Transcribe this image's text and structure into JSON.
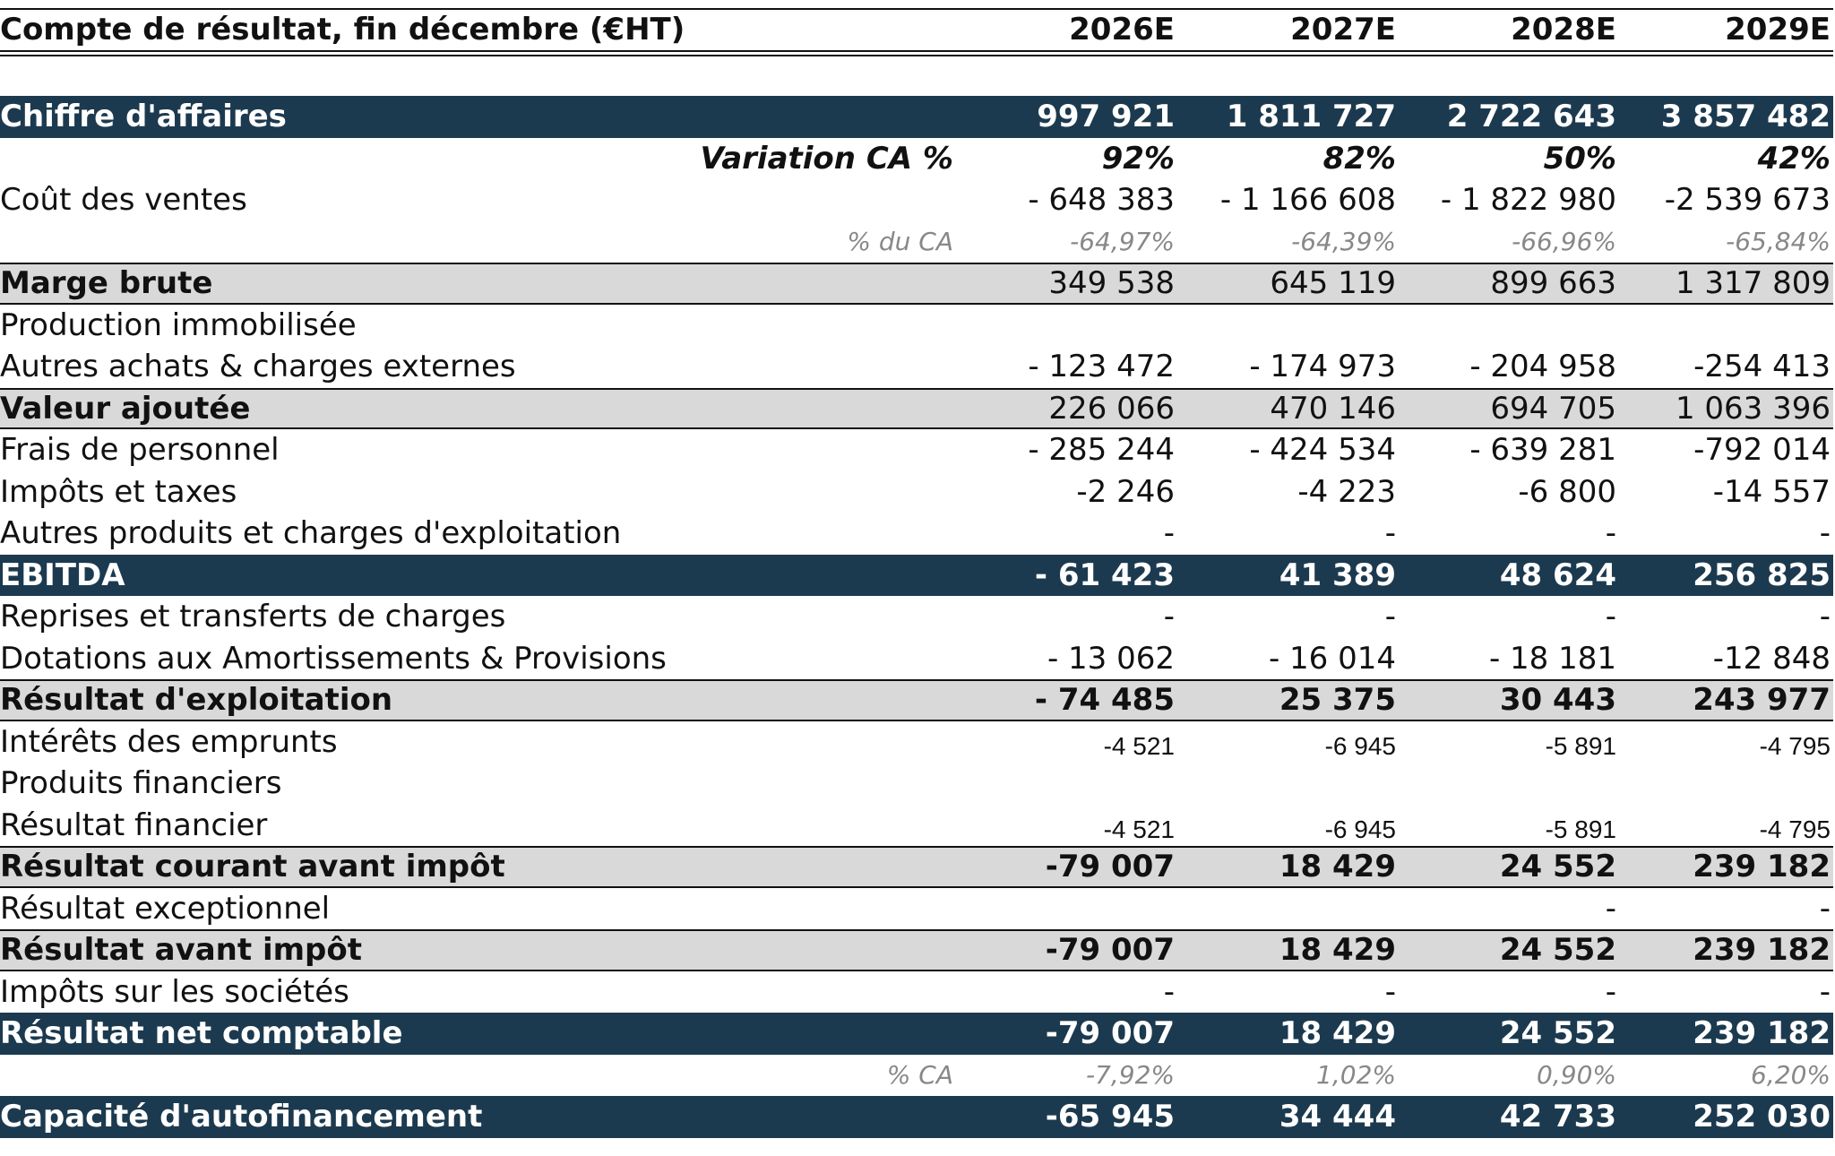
{
  "header": {
    "title": "Compte de résultat, fin décembre (€HT)",
    "years": [
      "2026E",
      "2027E",
      "2028E",
      "2029E"
    ]
  },
  "table": {
    "rows": [
      {
        "label": "Chiffre d'affaires",
        "values": [
          "997 921",
          "1 811 727",
          "2 722 643",
          "3 857 482"
        ]
      },
      {
        "label": "Variation CA %",
        "values": [
          "92%",
          "82%",
          "50%",
          "42%"
        ]
      },
      {
        "label": "Coût des ventes",
        "values": [
          "- 648 383",
          "- 1 166 608",
          "- 1 822 980",
          "-2 539 673"
        ]
      },
      {
        "label": "% du CA",
        "values": [
          "-64,97%",
          "-64,39%",
          "-66,96%",
          "-65,84%"
        ]
      },
      {
        "label": "Marge brute",
        "values": [
          "349 538",
          "645 119",
          "899 663",
          "1 317 809"
        ]
      },
      {
        "label": "Production immobilisée",
        "values": [
          null,
          null,
          null,
          null
        ]
      },
      {
        "label": "Autres achats & charges externes",
        "values": [
          "- 123 472",
          "- 174 973",
          "- 204 958",
          "-254 413"
        ]
      },
      {
        "label": "Valeur ajoutée",
        "values": [
          "226 066",
          "470 146",
          "694 705",
          "1 063 396"
        ]
      },
      {
        "label": "Frais de personnel",
        "values": [
          "- 285 244",
          "- 424 534",
          "- 639 281",
          "-792 014"
        ]
      },
      {
        "label": "Impôts et taxes",
        "values": [
          "-2 246",
          "-4 223",
          "-6 800",
          "-14 557"
        ]
      },
      {
        "label": "Autres produits et charges d'exploitation",
        "values": [
          "-",
          "-",
          "-",
          "-"
        ]
      },
      {
        "label": "EBITDA",
        "values": [
          "- 61 423",
          "41 389",
          "48 624",
          "256 825"
        ]
      },
      {
        "label": "Reprises et transferts de charges",
        "values": [
          "-",
          "-",
          "-",
          "-"
        ]
      },
      {
        "label": "Dotations aux Amortissements & Provisions",
        "values": [
          "- 13 062",
          "- 16 014",
          "- 18 181",
          "-12 848"
        ]
      },
      {
        "label": "Résultat d'exploitation",
        "values": [
          "- 74 485",
          "25 375",
          "30 443",
          "243 977"
        ]
      },
      {
        "label": "Intérêts des emprunts",
        "values": [
          "-4 521",
          "-6 945",
          "-5 891",
          "-4 795"
        ]
      },
      {
        "label": "Produits financiers",
        "values": [
          null,
          null,
          null,
          null
        ]
      },
      {
        "label": "Résultat financier",
        "values": [
          "-4 521",
          "-6 945",
          "-5 891",
          "-4 795"
        ]
      },
      {
        "label": "Résultat courant avant impôt",
        "values": [
          "-79 007",
          "18 429",
          "24 552",
          "239 182"
        ]
      },
      {
        "label": "Résultat exceptionnel",
        "values": [
          null,
          null,
          "-",
          "-"
        ]
      },
      {
        "label": "Résultat avant impôt",
        "values": [
          "-79 007",
          "18 429",
          "24 552",
          "239 182"
        ]
      },
      {
        "label": "Impôts sur les sociétés",
        "values": [
          "-",
          "-",
          "-",
          "-"
        ]
      },
      {
        "label": "Résultat net comptable",
        "values": [
          "-79 007",
          "18 429",
          "24 552",
          "239 182"
        ]
      },
      {
        "label": "% CA",
        "values": [
          "-7,92%",
          "1,02%",
          "0,90%",
          "6,20%"
        ]
      },
      {
        "label": "Capacité d'autofinancement",
        "values": [
          "-65 945",
          "34 444",
          "42 733",
          "252 030"
        ]
      }
    ]
  }
}
